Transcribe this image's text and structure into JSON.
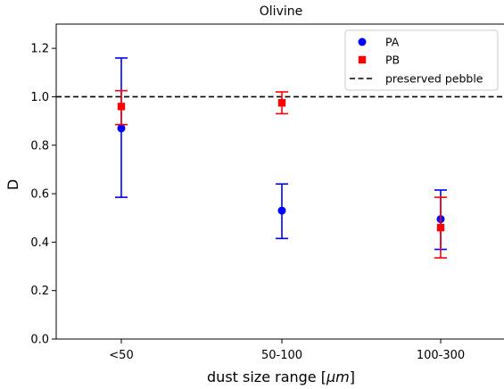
{
  "chart_data": {
    "type": "scatter",
    "title": "Olivine",
    "xlabel": "dust size range [",
    "xlabel_unit": "μm",
    "xlabel_end": "]",
    "ylabel": "D",
    "categories": [
      "<50",
      "50-100",
      "100-300"
    ],
    "ylim": [
      0.0,
      1.3
    ],
    "yticks": [
      0.0,
      0.2,
      0.4,
      0.6,
      0.8,
      1.0,
      1.2
    ],
    "ytick_labels": [
      "0.0",
      "0.2",
      "0.4",
      "0.6",
      "0.8",
      "1.0",
      "1.2"
    ],
    "grid": false,
    "legend_position": "top-right",
    "series": [
      {
        "name": "PA",
        "marker": "circle",
        "color": "#0000ff",
        "values": [
          0.87,
          0.53,
          0.495
        ],
        "err_low": [
          0.585,
          0.415,
          0.37
        ],
        "err_high": [
          1.16,
          0.64,
          0.615
        ]
      },
      {
        "name": "PB",
        "marker": "square",
        "color": "#ff0000",
        "values": [
          0.96,
          0.975,
          0.46
        ],
        "err_low": [
          0.885,
          0.93,
          0.335
        ],
        "err_high": [
          1.025,
          1.02,
          0.585
        ]
      }
    ],
    "reference_line": {
      "name": "preserved pebble",
      "value": 1.0,
      "style": "dashed",
      "color": "#000000"
    }
  }
}
